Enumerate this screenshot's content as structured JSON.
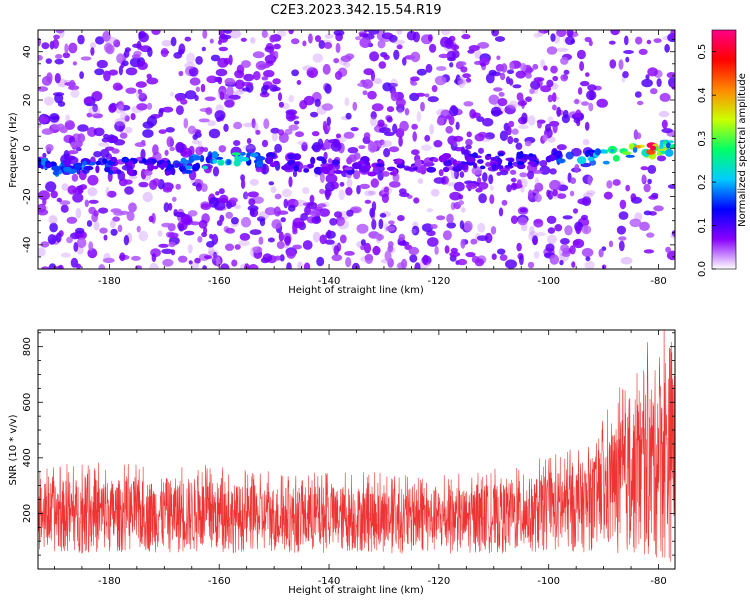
{
  "title": "C2E3.2023.342.15.54.R19",
  "colors": {
    "snr_line": "#ee3333",
    "axis": "#000000",
    "background": "#ffffff"
  },
  "chart_data": [
    {
      "type": "heatmap",
      "xlabel": "Height of straight line (km)",
      "ylabel": "Frequency (Hz)",
      "xlim": [
        -193,
        -77
      ],
      "ylim": [
        -50,
        49
      ],
      "xticks": [
        -180,
        -160,
        -140,
        -120,
        -100,
        -80
      ],
      "yticks": [
        -40,
        -20,
        0,
        20,
        40
      ],
      "colorbar": {
        "label": "Normalized spectral amplitude",
        "range": [
          0,
          0.55
        ],
        "ticks": [
          0.0,
          0.1,
          0.2,
          0.3,
          0.4,
          0.5
        ],
        "colors": [
          "#ffffff",
          "#8800ff",
          "#0000ff",
          "#00ccff",
          "#00ff66",
          "#ccff00",
          "#ff8800",
          "#ff0000",
          "#ff0088"
        ]
      },
      "ridge": {
        "description_points": [
          {
            "x": -190,
            "freq": -8,
            "amp": 0.18
          },
          {
            "x": -180,
            "freq": -7,
            "amp": 0.14
          },
          {
            "x": -170,
            "freq": -8,
            "amp": 0.12
          },
          {
            "x": -163,
            "freq": -6,
            "amp": 0.22
          },
          {
            "x": -157,
            "freq": -5,
            "amp": 0.25
          },
          {
            "x": -150,
            "freq": -6,
            "amp": 0.12
          },
          {
            "x": -140,
            "freq": -7,
            "amp": 0.1
          },
          {
            "x": -130,
            "freq": -8,
            "amp": 0.1
          },
          {
            "x": -120,
            "freq": -6,
            "amp": 0.1
          },
          {
            "x": -110,
            "freq": -5,
            "amp": 0.12
          },
          {
            "x": -100,
            "freq": -4,
            "amp": 0.15
          },
          {
            "x": -92,
            "freq": -4,
            "amp": 0.22
          },
          {
            "x": -86,
            "freq": -2,
            "amp": 0.28
          },
          {
            "x": -81,
            "freq": 0,
            "amp": 0.5
          },
          {
            "x": -78,
            "freq": 1,
            "amp": 0.3
          }
        ]
      }
    },
    {
      "type": "line",
      "xlabel": "Height of straight line (km)",
      "ylabel": "SNR (10 * v/v)",
      "xlim": [
        -193,
        -77
      ],
      "ylim": [
        0,
        860
      ],
      "xticks": [
        -180,
        -160,
        -140,
        -120,
        -100,
        -80
      ],
      "yticks": [
        200,
        400,
        600,
        800
      ],
      "envelope": {
        "x": [
          -193,
          -185,
          -175,
          -165,
          -155,
          -145,
          -135,
          -125,
          -115,
          -105,
          -97,
          -92,
          -88,
          -84,
          -81,
          -79,
          -77
        ],
        "low": [
          60,
          55,
          60,
          55,
          60,
          55,
          60,
          55,
          55,
          55,
          60,
          60,
          60,
          40,
          30,
          20,
          20
        ],
        "high": [
          310,
          330,
          320,
          330,
          300,
          300,
          300,
          290,
          290,
          320,
          360,
          400,
          520,
          620,
          700,
          800,
          860
        ]
      }
    }
  ]
}
